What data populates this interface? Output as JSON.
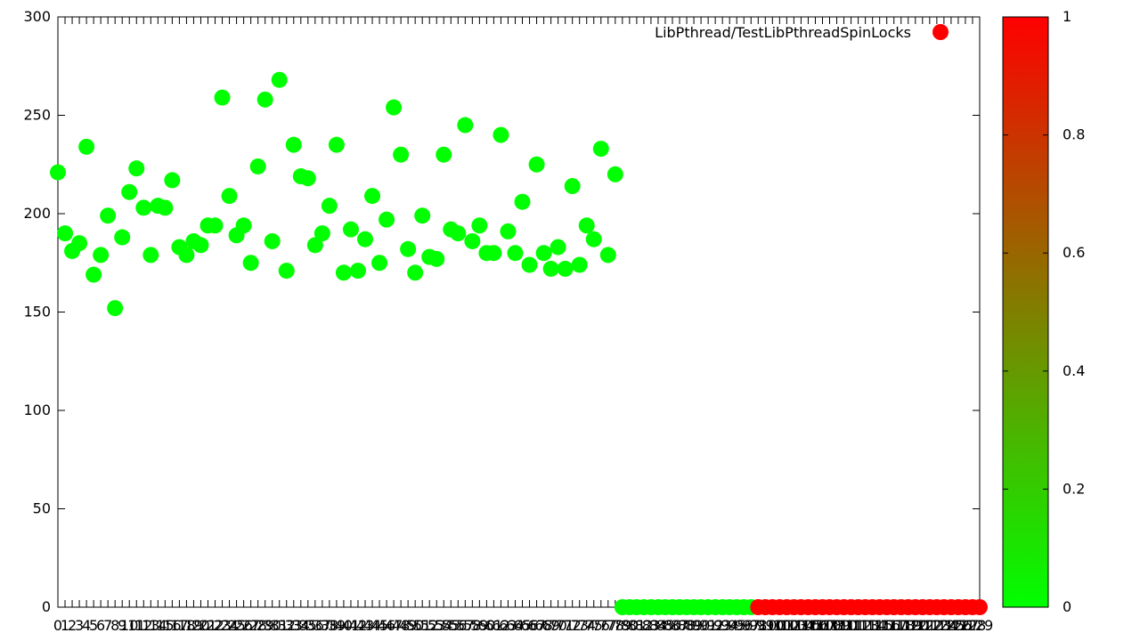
{
  "chart_data": {
    "type": "scatter",
    "title": "",
    "xlabel": "",
    "ylabel": "",
    "ylim": [
      0,
      300
    ],
    "xlim": [
      0,
      129
    ],
    "grid": false,
    "legend": {
      "placement": "top-right",
      "entries": [
        "LibPthread/TestLibPthreadSpinLocks"
      ]
    },
    "series": [
      {
        "name": "LibPthread/TestLibPthreadSpinLocks",
        "x": [
          0,
          1,
          2,
          3,
          4,
          5,
          6,
          7,
          8,
          9,
          10,
          11,
          12,
          13,
          14,
          15,
          16,
          17,
          18,
          19,
          20,
          21,
          22,
          23,
          24,
          25,
          26,
          27,
          28,
          29,
          30,
          31,
          32,
          33,
          34,
          35,
          36,
          37,
          38,
          39,
          40,
          41,
          42,
          43,
          44,
          45,
          46,
          47,
          48,
          49,
          50,
          51,
          52,
          53,
          54,
          55,
          56,
          57,
          58,
          59,
          60,
          61,
          62,
          63,
          64,
          65,
          66,
          67,
          68,
          69,
          70,
          71,
          72,
          73,
          74,
          75,
          76,
          77,
          78,
          79,
          80,
          81,
          82,
          83,
          84,
          85,
          86,
          87,
          88,
          89,
          90,
          91,
          92,
          93,
          94,
          95,
          96,
          97,
          98,
          99,
          100,
          101,
          102,
          103,
          104,
          105,
          106,
          107,
          108,
          109,
          110,
          111,
          112,
          113,
          114,
          115,
          116,
          117,
          118,
          119,
          120,
          121,
          122,
          123,
          124,
          125,
          126,
          127,
          128,
          129
        ],
        "y": [
          221,
          190,
          181,
          185,
          234,
          169,
          179,
          199,
          152,
          188,
          211,
          223,
          203,
          179,
          204,
          203,
          217,
          183,
          179,
          186,
          184,
          194,
          194,
          259,
          209,
          189,
          194,
          175,
          224,
          258,
          186,
          268,
          171,
          235,
          219,
          218,
          184,
          190,
          204,
          235,
          170,
          192,
          171,
          187,
          209,
          175,
          197,
          254,
          230,
          182,
          170,
          199,
          178,
          177,
          230,
          192,
          190,
          245,
          186,
          194,
          180,
          180,
          240,
          191,
          180,
          206,
          174,
          225,
          180,
          172,
          183,
          172,
          214,
          174,
          194,
          187,
          233,
          179,
          220,
          0,
          0,
          0,
          0,
          0,
          0,
          0,
          0,
          0,
          0,
          0,
          0,
          0,
          0,
          0,
          0,
          0,
          0,
          0,
          0,
          0,
          0,
          0,
          0,
          0,
          0,
          0,
          0,
          0,
          0,
          0,
          0,
          0,
          0,
          0,
          0,
          0,
          0,
          0,
          0,
          0,
          0,
          0,
          0,
          0,
          0,
          0,
          0,
          0,
          0,
          0
        ],
        "color_value": [
          0,
          0,
          0,
          0,
          0,
          0,
          0,
          0,
          0,
          0,
          0,
          0,
          0,
          0,
          0,
          0,
          0,
          0,
          0,
          0,
          0,
          0,
          0,
          0,
          0,
          0,
          0,
          0,
          0,
          0,
          0,
          0,
          0,
          0,
          0,
          0,
          0,
          0,
          0,
          0,
          0,
          0,
          0,
          0,
          0,
          0,
          0,
          0,
          0,
          0,
          0,
          0,
          0,
          0,
          0,
          0,
          0,
          0,
          0,
          0,
          0,
          0,
          0,
          0,
          0,
          0,
          0,
          0,
          0,
          0,
          0,
          0,
          0,
          0,
          0,
          0,
          0,
          0,
          0,
          0,
          0,
          0,
          0,
          0,
          0,
          0,
          0,
          0,
          0,
          0,
          0,
          0,
          0,
          0,
          0,
          0,
          0,
          0,
          1,
          1,
          1,
          1,
          1,
          1,
          1,
          1,
          1,
          1,
          1,
          1,
          1,
          1,
          1,
          1,
          1,
          1,
          1,
          1,
          1,
          1,
          1,
          1,
          1,
          1,
          1,
          1,
          1,
          1,
          1,
          1
        ]
      }
    ],
    "y_ticks": [
      0,
      50,
      100,
      150,
      200,
      250,
      300
    ],
    "colorbar": {
      "range": [
        0,
        1
      ],
      "ticks": [
        0,
        0.2,
        0.4,
        0.6,
        0.8,
        1
      ],
      "tick_labels": [
        "0",
        "0.2",
        "0.4",
        "0.6",
        "0.8",
        "1"
      ],
      "low_color": "#00ff00",
      "high_color": "#ff0000"
    },
    "legend_marker_color": "#ff0000"
  }
}
